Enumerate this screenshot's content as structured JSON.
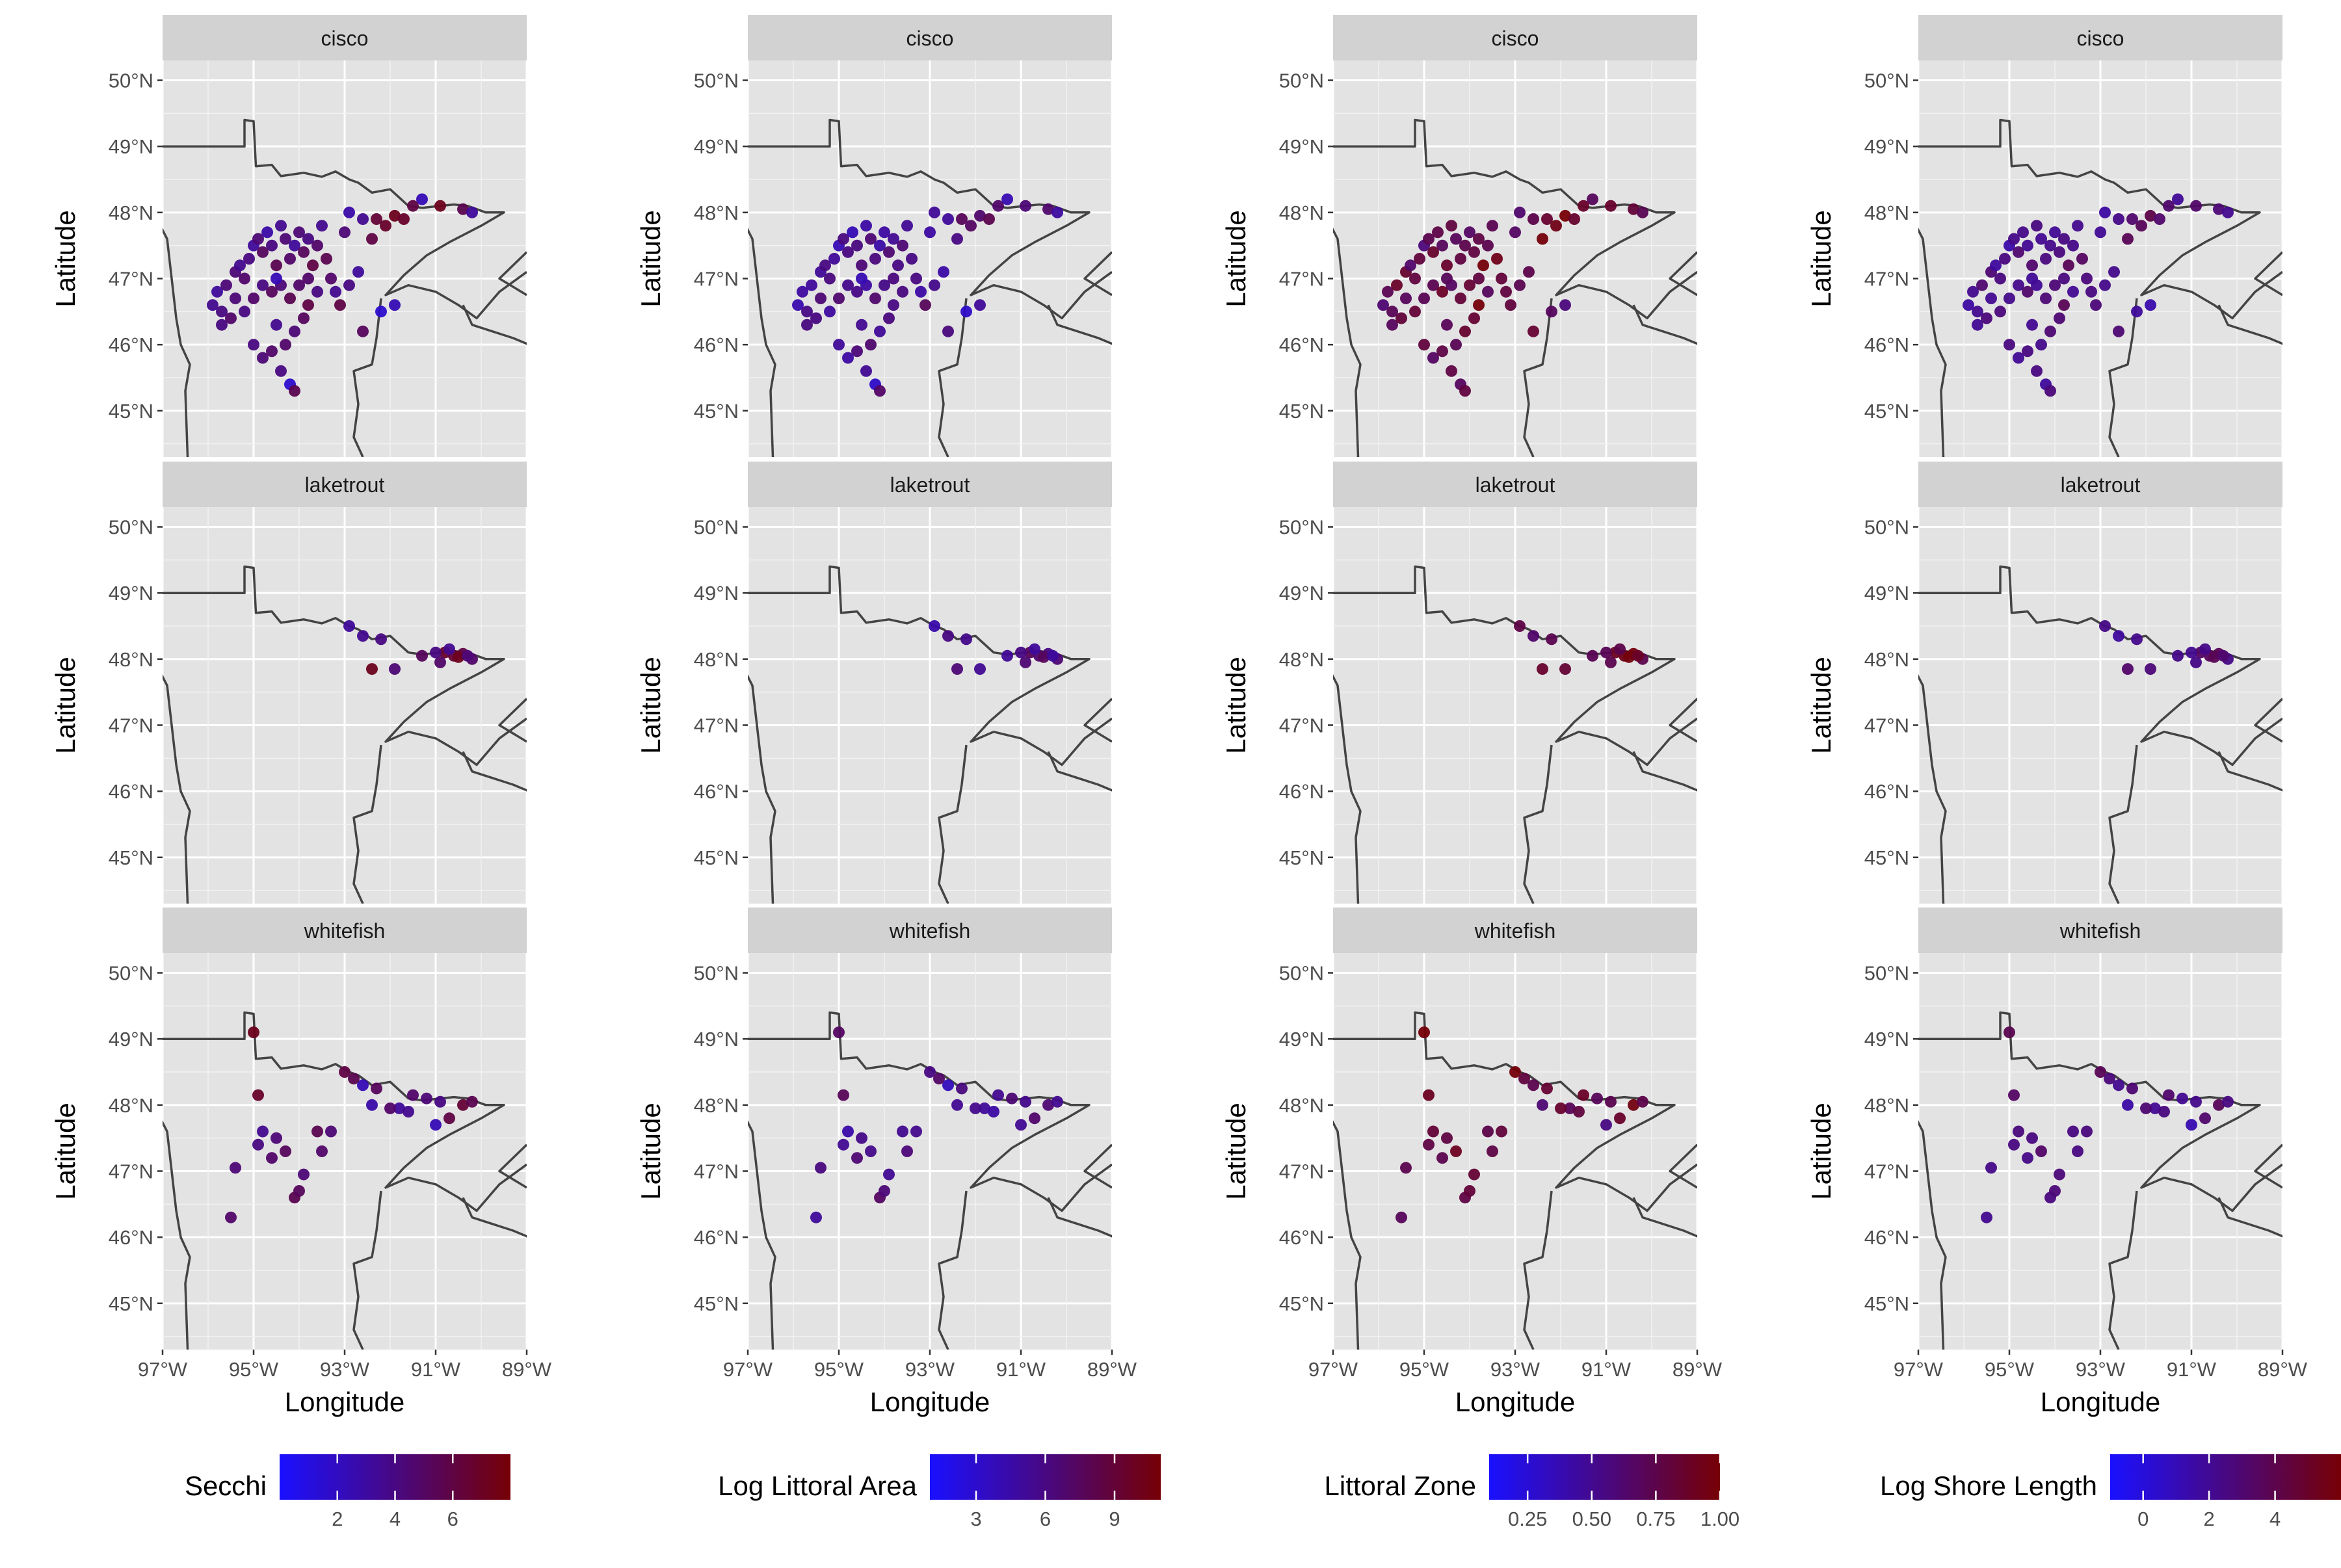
{
  "chart_data": {
    "type": "scatter",
    "layout": "faceted small multiples (3 rows x 4 columns), map of Minnesota lakes",
    "facet_rows": [
      "cisco",
      "laketrout",
      "whitefish"
    ],
    "xlabel": "Longitude",
    "ylabel": "Latitude",
    "x_ticks": [
      "97°W",
      "95°W",
      "93°W",
      "91°W",
      "89°W"
    ],
    "y_ticks": [
      "50°N",
      "49°N",
      "48°N",
      "47°N",
      "46°N",
      "45°N"
    ],
    "xlim": [
      -97,
      -89
    ],
    "ylim": [
      44.3,
      50.3
    ],
    "grid": true,
    "legend_position": "bottom",
    "color_low": "#1a10ff",
    "color_high": "#760005",
    "panel_bg": "#e3e3e3",
    "strip_bg": "#d2d2d2",
    "border_color": "#444444",
    "panels": [
      {
        "column_label": "Secchi",
        "legend": {
          "title": "Secchi",
          "range": [
            0,
            8
          ],
          "ticks": [
            2,
            4,
            6
          ],
          "tick_labels": [
            "2",
            "4",
            "6"
          ]
        }
      },
      {
        "column_label": "Log Littoral Area",
        "legend": {
          "title": "Log Littoral Area",
          "range": [
            1,
            11
          ],
          "ticks": [
            3,
            6,
            9
          ],
          "tick_labels": [
            "3",
            "6",
            "9"
          ]
        }
      },
      {
        "column_label": "Littoral Zone",
        "legend": {
          "title": "Littoral Zone",
          "range": [
            0.1,
            1.0
          ],
          "ticks": [
            0.25,
            0.5,
            0.75,
            1.0
          ],
          "tick_labels": [
            "0.25",
            "0.50",
            "0.75",
            "1.00"
          ]
        }
      },
      {
        "column_label": "Log Shore Length",
        "legend": {
          "title": "Log Shore Length",
          "range": [
            -1,
            6
          ],
          "ticks": [
            0,
            2,
            4
          ],
          "tick_labels": [
            "0",
            "2",
            "4"
          ]
        }
      }
    ],
    "series": [
      {
        "facet": "cisco",
        "points_lon_lat_t": [
          [
            -95.9,
            46.6,
            0.45
          ],
          [
            -95.7,
            46.5,
            0.5
          ],
          [
            -95.8,
            46.8,
            0.4
          ],
          [
            -95.6,
            46.9,
            0.55
          ],
          [
            -95.7,
            46.3,
            0.5
          ],
          [
            -95.5,
            46.4,
            0.6
          ],
          [
            -95.4,
            47.1,
            0.55
          ],
          [
            -95.3,
            47.2,
            0.45
          ],
          [
            -95.2,
            47.0,
            0.6
          ],
          [
            -95.1,
            47.3,
            0.5
          ],
          [
            -95.0,
            47.5,
            0.4
          ],
          [
            -94.9,
            47.6,
            0.55
          ],
          [
            -94.8,
            47.4,
            0.65
          ],
          [
            -94.7,
            47.7,
            0.35
          ],
          [
            -94.6,
            47.5,
            0.5
          ],
          [
            -94.5,
            47.2,
            0.7
          ],
          [
            -94.4,
            47.8,
            0.45
          ],
          [
            -94.3,
            47.6,
            0.55
          ],
          [
            -94.2,
            47.3,
            0.6
          ],
          [
            -94.1,
            47.5,
            0.4
          ],
          [
            -94.0,
            47.7,
            0.55
          ],
          [
            -93.9,
            47.4,
            0.65
          ],
          [
            -93.8,
            47.6,
            0.5
          ],
          [
            -93.7,
            47.2,
            0.75
          ],
          [
            -93.6,
            47.5,
            0.6
          ],
          [
            -93.5,
            47.8,
            0.45
          ],
          [
            -93.4,
            47.3,
            0.7
          ],
          [
            -95.0,
            46.7,
            0.6
          ],
          [
            -94.8,
            46.9,
            0.5
          ],
          [
            -94.6,
            46.8,
            0.65
          ],
          [
            -94.4,
            46.9,
            0.55
          ],
          [
            -94.2,
            46.7,
            0.7
          ],
          [
            -94.0,
            46.9,
            0.6
          ],
          [
            -93.8,
            46.6,
            0.75
          ],
          [
            -93.6,
            46.8,
            0.5
          ],
          [
            -93.9,
            46.4,
            0.65
          ],
          [
            -94.1,
            46.2,
            0.55
          ],
          [
            -94.3,
            46.0,
            0.6
          ],
          [
            -94.5,
            46.3,
            0.45
          ],
          [
            -95.0,
            46.0,
            0.5
          ],
          [
            -94.8,
            45.8,
            0.55
          ],
          [
            -94.6,
            45.9,
            0.6
          ],
          [
            -94.4,
            45.6,
            0.5
          ],
          [
            -94.2,
            45.4,
            0.2
          ],
          [
            -94.1,
            45.3,
            0.7
          ],
          [
            -93.3,
            47.0,
            0.6
          ],
          [
            -93.2,
            46.8,
            0.45
          ],
          [
            -93.1,
            46.6,
            0.75
          ],
          [
            -92.9,
            46.9,
            0.5
          ],
          [
            -92.7,
            47.1,
            0.4
          ],
          [
            -93.0,
            47.7,
            0.55
          ],
          [
            -92.9,
            48.0,
            0.35
          ],
          [
            -92.6,
            47.9,
            0.45
          ],
          [
            -92.4,
            47.6,
            0.75
          ],
          [
            -92.3,
            47.9,
            0.8
          ],
          [
            -92.1,
            47.8,
            0.85
          ],
          [
            -91.9,
            47.95,
            0.9
          ],
          [
            -91.7,
            47.9,
            0.85
          ],
          [
            -91.5,
            48.1,
            0.75
          ],
          [
            -91.3,
            48.2,
            0.3
          ],
          [
            -90.9,
            48.1,
            0.9
          ],
          [
            -90.4,
            48.05,
            0.7
          ],
          [
            -90.2,
            48.0,
            0.4
          ],
          [
            -92.2,
            46.5,
            0.2
          ],
          [
            -91.9,
            46.6,
            0.3
          ],
          [
            -92.6,
            46.2,
            0.65
          ],
          [
            -95.2,
            46.5,
            0.5
          ],
          [
            -95.4,
            46.7,
            0.55
          ],
          [
            -93.8,
            47.0,
            0.6
          ],
          [
            -94.5,
            47.0,
            0.3
          ]
        ]
      },
      {
        "facet": "laketrout",
        "points_lon_lat_t": [
          [
            -92.4,
            47.85,
            0.9
          ],
          [
            -90.8,
            48.1,
            0.85
          ],
          [
            -90.6,
            48.05,
            0.8
          ],
          [
            -90.4,
            48.08,
            0.75
          ],
          [
            -90.2,
            48.0,
            0.6
          ],
          [
            -90.5,
            48.03,
            0.9
          ],
          [
            -92.9,
            48.5,
            0.4
          ],
          [
            -92.6,
            48.35,
            0.45
          ],
          [
            -92.2,
            48.3,
            0.5
          ],
          [
            -91.9,
            47.85,
            0.55
          ],
          [
            -91.3,
            48.05,
            0.65
          ],
          [
            -91.0,
            48.1,
            0.5
          ],
          [
            -90.7,
            48.15,
            0.45
          ],
          [
            -90.3,
            48.05,
            0.55
          ],
          [
            -90.9,
            47.95,
            0.6
          ]
        ]
      },
      {
        "facet": "whitefish",
        "points_lon_lat_t": [
          [
            -95.5,
            46.3,
            0.6
          ],
          [
            -95.4,
            47.05,
            0.55
          ],
          [
            -94.9,
            47.4,
            0.5
          ],
          [
            -94.8,
            47.6,
            0.45
          ],
          [
            -94.6,
            47.2,
            0.6
          ],
          [
            -94.5,
            47.5,
            0.55
          ],
          [
            -94.3,
            47.3,
            0.65
          ],
          [
            -94.1,
            46.6,
            0.7
          ],
          [
            -94.0,
            46.7,
            0.65
          ],
          [
            -93.9,
            46.95,
            0.55
          ],
          [
            -93.6,
            47.6,
            0.7
          ],
          [
            -93.5,
            47.3,
            0.6
          ],
          [
            -93.3,
            47.6,
            0.55
          ],
          [
            -92.6,
            48.3,
            0.3
          ],
          [
            -92.4,
            48.0,
            0.35
          ],
          [
            -91.8,
            47.95,
            0.4
          ],
          [
            -91.6,
            47.9,
            0.45
          ],
          [
            -91.0,
            47.7,
            0.3
          ],
          [
            -90.7,
            47.8,
            0.75
          ],
          [
            -90.4,
            48.0,
            0.8
          ],
          [
            -90.2,
            48.05,
            0.7
          ],
          [
            -94.9,
            48.15,
            0.85
          ],
          [
            -95.0,
            49.1,
            0.9
          ],
          [
            -93.0,
            48.5,
            0.75
          ],
          [
            -92.8,
            48.4,
            0.7
          ],
          [
            -92.3,
            48.25,
            0.65
          ],
          [
            -91.5,
            48.15,
            0.6
          ],
          [
            -91.2,
            48.1,
            0.55
          ],
          [
            -90.9,
            48.05,
            0.5
          ],
          [
            -92.0,
            47.95,
            0.6
          ]
        ]
      }
    ]
  }
}
